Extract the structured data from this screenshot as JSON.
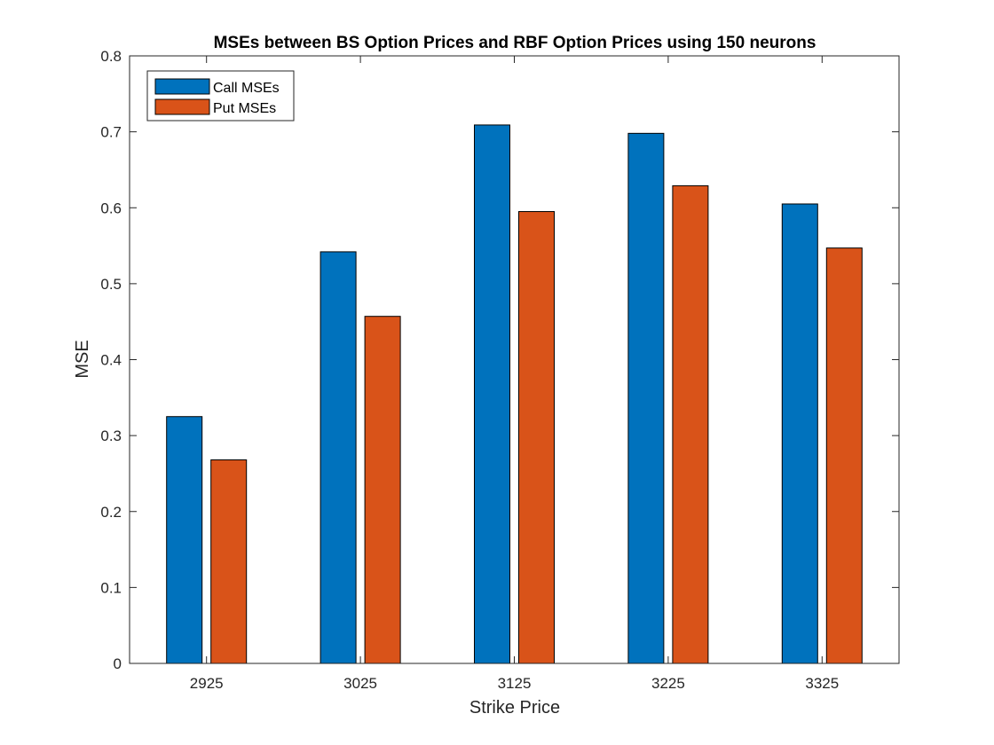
{
  "chart_data": {
    "type": "bar",
    "title": "MSEs between BS Option Prices and RBF Option Prices using 150 neurons",
    "xlabel": "Strike Price",
    "ylabel": "MSE",
    "categories": [
      "2925",
      "3025",
      "3125",
      "3225",
      "3325"
    ],
    "series": [
      {
        "name": "Call MSEs",
        "color": "#0072BD",
        "values": [
          0.325,
          0.542,
          0.709,
          0.698,
          0.605
        ]
      },
      {
        "name": "Put MSEs",
        "color": "#D95319",
        "values": [
          0.268,
          0.457,
          0.595,
          0.629,
          0.547
        ]
      }
    ],
    "ylim": [
      0,
      0.8
    ],
    "yticks": [
      "0",
      "0.1",
      "0.2",
      "0.3",
      "0.4",
      "0.5",
      "0.6",
      "0.7",
      "0.8"
    ],
    "grid": false,
    "legend_position": "top-left"
  }
}
